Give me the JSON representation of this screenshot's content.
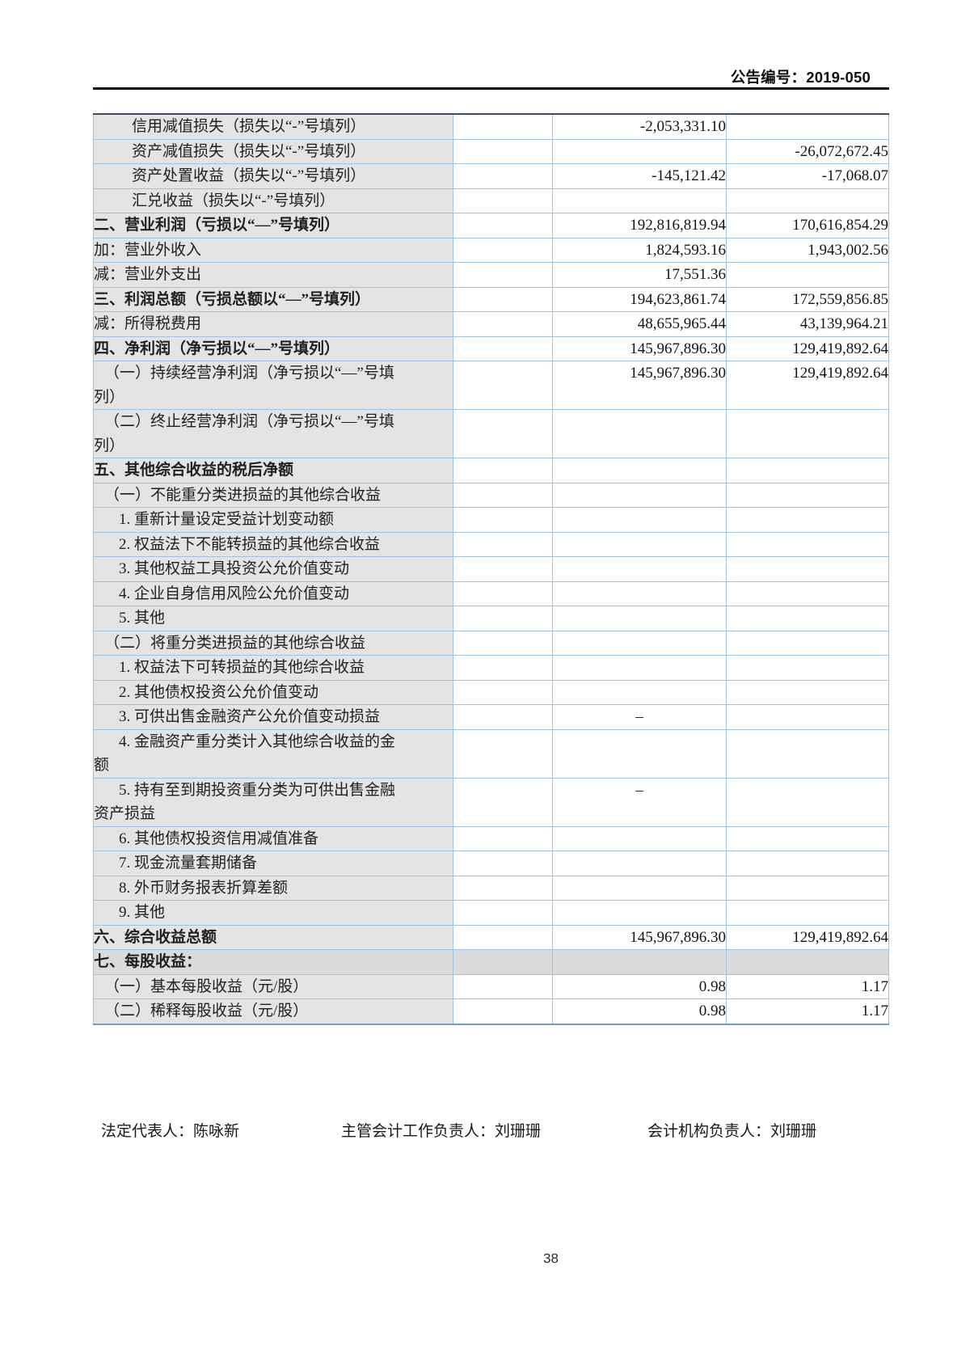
{
  "header": {
    "announcement_no": "公告编号：2019-050"
  },
  "table": {
    "rows": [
      {
        "label": "信用减值损失（损失以“-”号填列）",
        "indent": 3,
        "bold": false,
        "v1": "-2,053,331.10",
        "v2": ""
      },
      {
        "label": "资产减值损失（损失以“-”号填列）",
        "indent": 3,
        "bold": false,
        "v1": "",
        "v2": "-26,072,672.45"
      },
      {
        "label": "资产处置收益（损失以“-”号填列）",
        "indent": 3,
        "bold": false,
        "v1": "-145,121.42",
        "v2": "-17,068.07"
      },
      {
        "label": "汇兑收益（损失以“-”号填列）",
        "indent": 3,
        "bold": false,
        "v1": "",
        "v2": ""
      },
      {
        "label": "二、营业利润（亏损以“—”号填列）",
        "indent": 0,
        "bold": true,
        "v1": "192,816,819.94",
        "v2": "170,616,854.29"
      },
      {
        "label": "加：营业外收入",
        "indent": 0,
        "bold": false,
        "v1": "1,824,593.16",
        "v2": "1,943,002.56"
      },
      {
        "label": "减：营业外支出",
        "indent": 0,
        "bold": false,
        "v1": "17,551.36",
        "v2": ""
      },
      {
        "label": "三、利润总额（亏损总额以“—”号填列）",
        "indent": 0,
        "bold": true,
        "v1": "194,623,861.74",
        "v2": "172,559,856.85"
      },
      {
        "label": "减：所得税费用",
        "indent": 0,
        "bold": false,
        "v1": "48,655,965.44",
        "v2": "43,139,964.21"
      },
      {
        "label": "四、净利润（净亏损以“—”号填列）",
        "indent": 0,
        "bold": true,
        "v1": "145,967,896.30",
        "v2": "129,419,892.64"
      },
      {
        "label": "（一）持续经营净利润（净亏损以“—”号填\n列）",
        "indent": 1,
        "bold": false,
        "tall": true,
        "v1": "145,967,896.30",
        "v2": "129,419,892.64"
      },
      {
        "label": "（二）终止经营净利润（净亏损以“—”号填\n列）",
        "indent": 1,
        "bold": false,
        "tall": true,
        "v1": "",
        "v2": ""
      },
      {
        "label": "五、其他综合收益的税后净额",
        "indent": 0,
        "bold": true,
        "v1": "",
        "v2": ""
      },
      {
        "label": "（一）不能重分类进损益的其他综合收益",
        "indent": 1,
        "bold": false,
        "v1": "",
        "v2": ""
      },
      {
        "label": "1. 重新计量设定受益计划变动额",
        "indent": 2,
        "bold": false,
        "v1": "",
        "v2": ""
      },
      {
        "label": "2. 权益法下不能转损益的其他综合收益",
        "indent": 2,
        "bold": false,
        "v1": "",
        "v2": ""
      },
      {
        "label": "3. 其他权益工具投资公允价值变动",
        "indent": 2,
        "bold": false,
        "v1": "",
        "v2": ""
      },
      {
        "label": "4. 企业自身信用风险公允价值变动",
        "indent": 2,
        "bold": false,
        "v1": "",
        "v2": ""
      },
      {
        "label": "5. 其他",
        "indent": 2,
        "bold": false,
        "v1": "",
        "v2": ""
      },
      {
        "label": "（二）将重分类进损益的其他综合收益",
        "indent": 1,
        "bold": false,
        "v1": "",
        "v2": ""
      },
      {
        "label": "1. 权益法下可转损益的其他综合收益",
        "indent": 2,
        "bold": false,
        "v1": "",
        "v2": ""
      },
      {
        "label": "2. 其他债权投资公允价值变动",
        "indent": 2,
        "bold": false,
        "v1": "",
        "v2": ""
      },
      {
        "label": "3. 可供出售金融资产公允价值变动损益",
        "indent": 2,
        "bold": false,
        "v1": "–",
        "v1_center": true,
        "v2": ""
      },
      {
        "label": "4. 金融资产重分类计入其他综合收益的金\n额",
        "indent": 2,
        "bold": false,
        "tall": true,
        "v1": "",
        "v2": ""
      },
      {
        "label": "5. 持有至到期投资重分类为可供出售金融\n资产损益",
        "indent": 2,
        "bold": false,
        "tall": true,
        "v1": "–",
        "v1_center": true,
        "v2": ""
      },
      {
        "label": "6. 其他债权投资信用减值准备",
        "indent": 2,
        "bold": false,
        "v1": "",
        "v2": ""
      },
      {
        "label": "7. 现金流量套期储备",
        "indent": 2,
        "bold": false,
        "v1": "",
        "v2": ""
      },
      {
        "label": "8. 外币财务报表折算差额",
        "indent": 2,
        "bold": false,
        "v1": "",
        "v2": ""
      },
      {
        "label": "9. 其他",
        "indent": 2,
        "bold": false,
        "v1": "",
        "v2": ""
      },
      {
        "label": "六、综合收益总额",
        "indent": 0,
        "bold": true,
        "v1": "145,967,896.30",
        "v2": "129,419,892.64"
      },
      {
        "label": "七、每股收益：",
        "indent": 0,
        "bold": true,
        "full_gray": true,
        "v1": "",
        "v2": ""
      },
      {
        "label": "（一）基本每股收益（元/股）",
        "indent": 1,
        "bold": false,
        "v1": "0.98",
        "v2": "1.17"
      },
      {
        "label": "（二）稀释每股收益（元/股）",
        "indent": 1,
        "bold": false,
        "v1": "0.98",
        "v2": "1.17"
      }
    ]
  },
  "footer": {
    "legal_representative": "法定代表人：陈咏新",
    "accounting_work_head": "主管会计工作负责人：刘珊珊",
    "accounting_org_head": "会计机构负责人：刘珊珊"
  },
  "page_number": "38",
  "colors": {
    "grid_border": "#9dc3e6",
    "outer_border": "#84add6",
    "top_border": "#3d4c5e",
    "label_cell_bg": "#e4e4e4",
    "section_row_bg": "#dbdbdb",
    "rule": "#0c0c0c"
  }
}
